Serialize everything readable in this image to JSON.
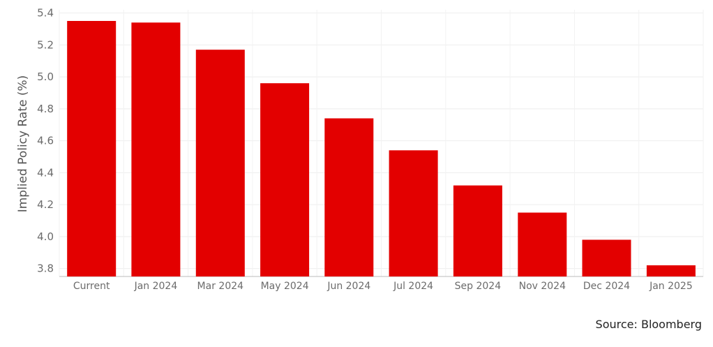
{
  "chart_data": {
    "type": "bar",
    "title": "",
    "xlabel": "",
    "ylabel": "Implied Policy Rate (%)",
    "categories": [
      "Current",
      "Jan 2024",
      "Mar 2024",
      "May 2024",
      "Jun 2024",
      "Jul 2024",
      "Sep 2024",
      "Nov 2024",
      "Dec 2024",
      "Jan 2025"
    ],
    "values": [
      5.35,
      5.34,
      5.17,
      4.96,
      4.74,
      4.54,
      4.32,
      4.15,
      3.98,
      3.82
    ],
    "ylim": [
      3.75,
      5.42
    ],
    "yticks": [
      3.8,
      4.0,
      4.2,
      4.4,
      4.6,
      4.8,
      5.0,
      5.2,
      5.4
    ],
    "ytick_labels": [
      "3.8",
      "4.0",
      "4.2",
      "4.4",
      "4.6",
      "4.8",
      "5.0",
      "5.2",
      "5.4"
    ],
    "grid": true,
    "bar_color": "#e30000"
  },
  "source": "Source: Bloomberg"
}
